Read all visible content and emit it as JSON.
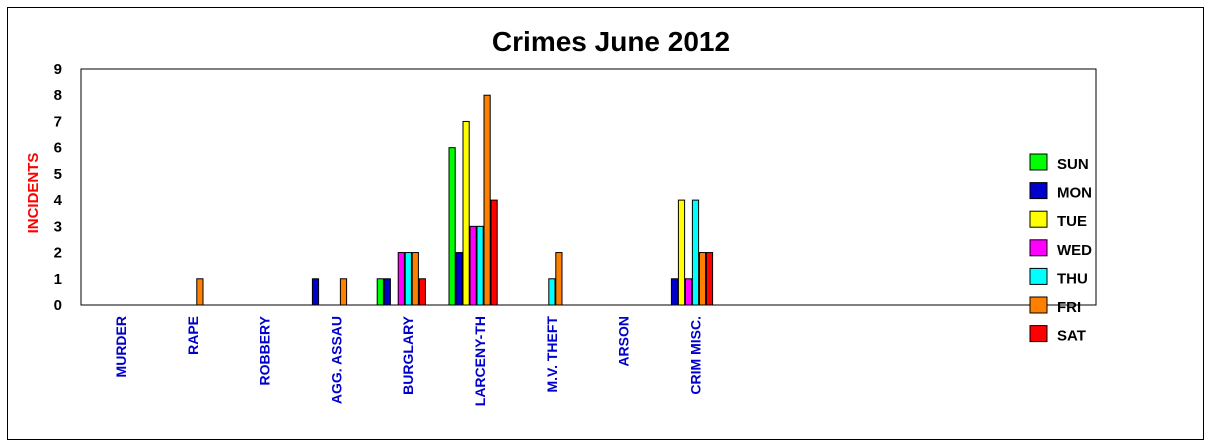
{
  "chart_data": {
    "type": "bar",
    "title": "Crimes June 2012",
    "xlabel": "",
    "ylabel": "INCIDENTS",
    "ylim": [
      0,
      9
    ],
    "yticks": [
      0,
      1,
      2,
      3,
      4,
      5,
      6,
      7,
      8,
      9
    ],
    "grid": false,
    "legend_position": "right",
    "categories": [
      "MURDER",
      "RAPE",
      "ROBBERY",
      "AGG. ASSAU",
      "BURGLARY",
      "LARCENY-TH",
      "M.V. THEFT",
      "ARSON",
      "CRIM MISC."
    ],
    "series": [
      {
        "name": "SUN",
        "color": "#00ff00",
        "values": [
          0,
          0,
          0,
          0,
          1,
          6,
          0,
          0,
          0
        ]
      },
      {
        "name": "MON",
        "color": "#0000cc",
        "values": [
          0,
          0,
          0,
          1,
          1,
          2,
          0,
          0,
          1
        ]
      },
      {
        "name": "TUE",
        "color": "#ffff00",
        "values": [
          0,
          0,
          0,
          0,
          0,
          7,
          0,
          0,
          4
        ]
      },
      {
        "name": "WED",
        "color": "#ff00ff",
        "values": [
          0,
          0,
          0,
          0,
          2,
          3,
          0,
          0,
          1
        ]
      },
      {
        "name": "THU",
        "color": "#00ffff",
        "values": [
          0,
          0,
          0,
          0,
          2,
          3,
          1,
          0,
          4
        ]
      },
      {
        "name": "FRI",
        "color": "#ff8000",
        "values": [
          0,
          1,
          0,
          1,
          2,
          8,
          2,
          0,
          2
        ]
      },
      {
        "name": "SAT",
        "color": "#ff0000",
        "values": [
          0,
          0,
          0,
          0,
          1,
          4,
          0,
          0,
          2
        ]
      }
    ],
    "colors": {
      "ylabel": "#ff0000",
      "xtick": "#0000cc",
      "axis": "#000000"
    }
  }
}
